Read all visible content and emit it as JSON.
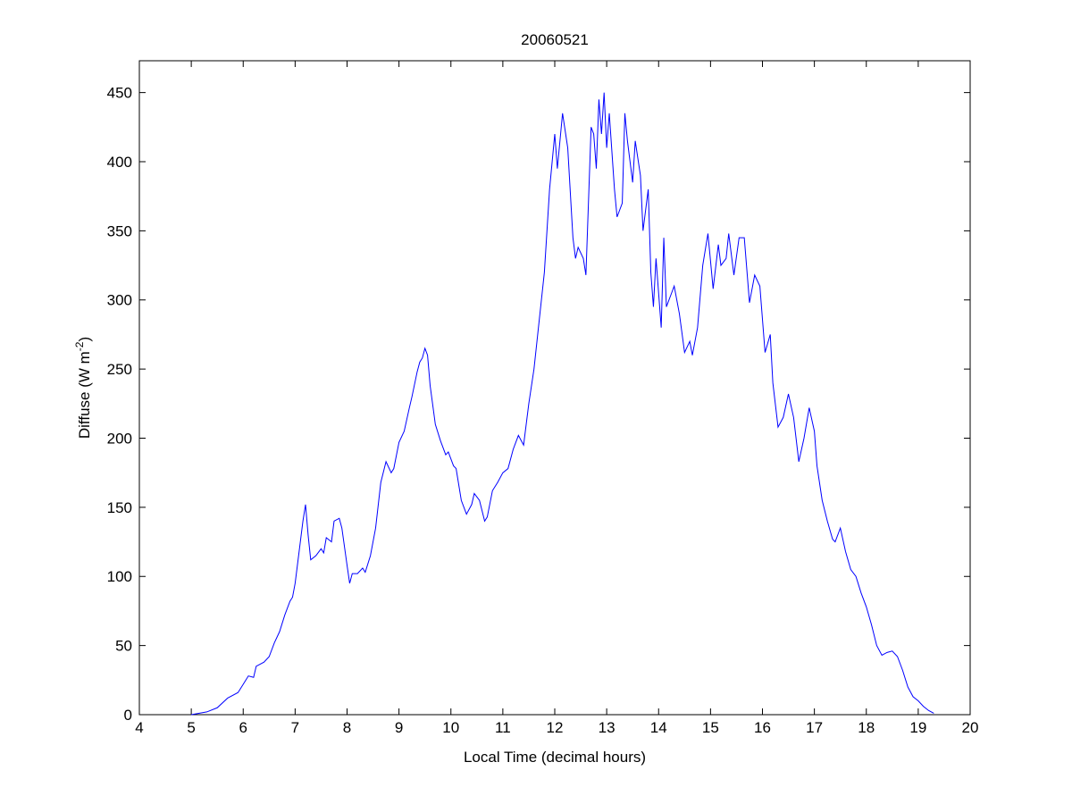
{
  "chart_data": {
    "type": "line",
    "title": "20060521",
    "x_label": "Local Time (decimal hours)",
    "y_label_parts": [
      "Diffuse (W m",
      "-2",
      ")"
    ],
    "xlim": [
      4,
      20
    ],
    "xticks": [
      4,
      5,
      6,
      7,
      8,
      9,
      10,
      11,
      12,
      13,
      14,
      15,
      16,
      17,
      18,
      19,
      20
    ],
    "ylim": [
      0,
      473
    ],
    "yticks": [
      0,
      50,
      100,
      150,
      200,
      250,
      300,
      350,
      400,
      450
    ],
    "grid": false,
    "series": [
      {
        "name": "Diffuse",
        "color": "#0000ff",
        "x": [
          5.0,
          5.3,
          5.5,
          5.7,
          5.9,
          6.0,
          6.1,
          6.2,
          6.25,
          6.4,
          6.5,
          6.6,
          6.7,
          6.8,
          6.9,
          6.95,
          7.0,
          7.1,
          7.15,
          7.2,
          7.25,
          7.3,
          7.4,
          7.5,
          7.55,
          7.6,
          7.7,
          7.75,
          7.85,
          7.9,
          8.0,
          8.05,
          8.1,
          8.2,
          8.3,
          8.35,
          8.45,
          8.55,
          8.65,
          8.75,
          8.85,
          8.9,
          9.0,
          9.1,
          9.2,
          9.25,
          9.35,
          9.4,
          9.45,
          9.5,
          9.55,
          9.6,
          9.7,
          9.8,
          9.9,
          9.95,
          10.05,
          10.1,
          10.2,
          10.3,
          10.4,
          10.45,
          10.55,
          10.65,
          10.7,
          10.8,
          10.9,
          11.0,
          11.1,
          11.2,
          11.3,
          11.4,
          11.5,
          11.6,
          11.7,
          11.8,
          11.9,
          12.0,
          12.05,
          12.15,
          12.25,
          12.35,
          12.4,
          12.45,
          12.55,
          12.6,
          12.7,
          12.75,
          12.8,
          12.85,
          12.9,
          12.95,
          13.0,
          13.05,
          13.15,
          13.2,
          13.3,
          13.35,
          13.4,
          13.5,
          13.55,
          13.65,
          13.7,
          13.8,
          13.85,
          13.9,
          13.95,
          14.05,
          14.1,
          14.15,
          14.25,
          14.3,
          14.4,
          14.5,
          14.6,
          14.65,
          14.75,
          14.85,
          14.95,
          15.05,
          15.15,
          15.2,
          15.3,
          15.35,
          15.45,
          15.55,
          15.65,
          15.75,
          15.85,
          15.95,
          16.05,
          16.15,
          16.2,
          16.3,
          16.4,
          16.5,
          16.6,
          16.7,
          16.8,
          16.9,
          17.0,
          17.05,
          17.15,
          17.25,
          17.35,
          17.4,
          17.5,
          17.6,
          17.7,
          17.8,
          17.9,
          18.0,
          18.1,
          18.2,
          18.3,
          18.4,
          18.5,
          18.6,
          18.7,
          18.8,
          18.9,
          19.0,
          19.1,
          19.2,
          19.3
        ],
        "values": [
          0,
          2,
          5,
          12,
          16,
          22,
          28,
          27,
          35,
          38,
          42,
          52,
          60,
          72,
          82,
          85,
          95,
          125,
          140,
          152,
          130,
          112,
          115,
          120,
          117,
          128,
          125,
          140,
          142,
          135,
          108,
          95,
          102,
          102,
          106,
          103,
          115,
          135,
          168,
          183,
          175,
          178,
          197,
          205,
          222,
          230,
          248,
          255,
          258,
          265,
          260,
          238,
          210,
          198,
          188,
          190,
          180,
          178,
          155,
          145,
          152,
          160,
          155,
          140,
          143,
          162,
          168,
          175,
          178,
          192,
          202,
          195,
          225,
          250,
          285,
          320,
          380,
          420,
          395,
          435,
          410,
          345,
          330,
          338,
          330,
          318,
          425,
          420,
          395,
          445,
          420,
          450,
          410,
          435,
          380,
          360,
          370,
          435,
          415,
          385,
          415,
          390,
          350,
          380,
          320,
          295,
          330,
          280,
          345,
          295,
          305,
          310,
          290,
          262,
          270,
          260,
          280,
          325,
          348,
          308,
          340,
          325,
          330,
          348,
          318,
          345,
          345,
          298,
          318,
          310,
          262,
          275,
          240,
          208,
          215,
          232,
          215,
          183,
          200,
          222,
          205,
          180,
          155,
          140,
          127,
          125,
          135,
          118,
          105,
          100,
          88,
          78,
          65,
          50,
          43,
          45,
          46,
          42,
          32,
          20,
          13,
          10,
          6,
          3,
          1
        ]
      }
    ]
  }
}
